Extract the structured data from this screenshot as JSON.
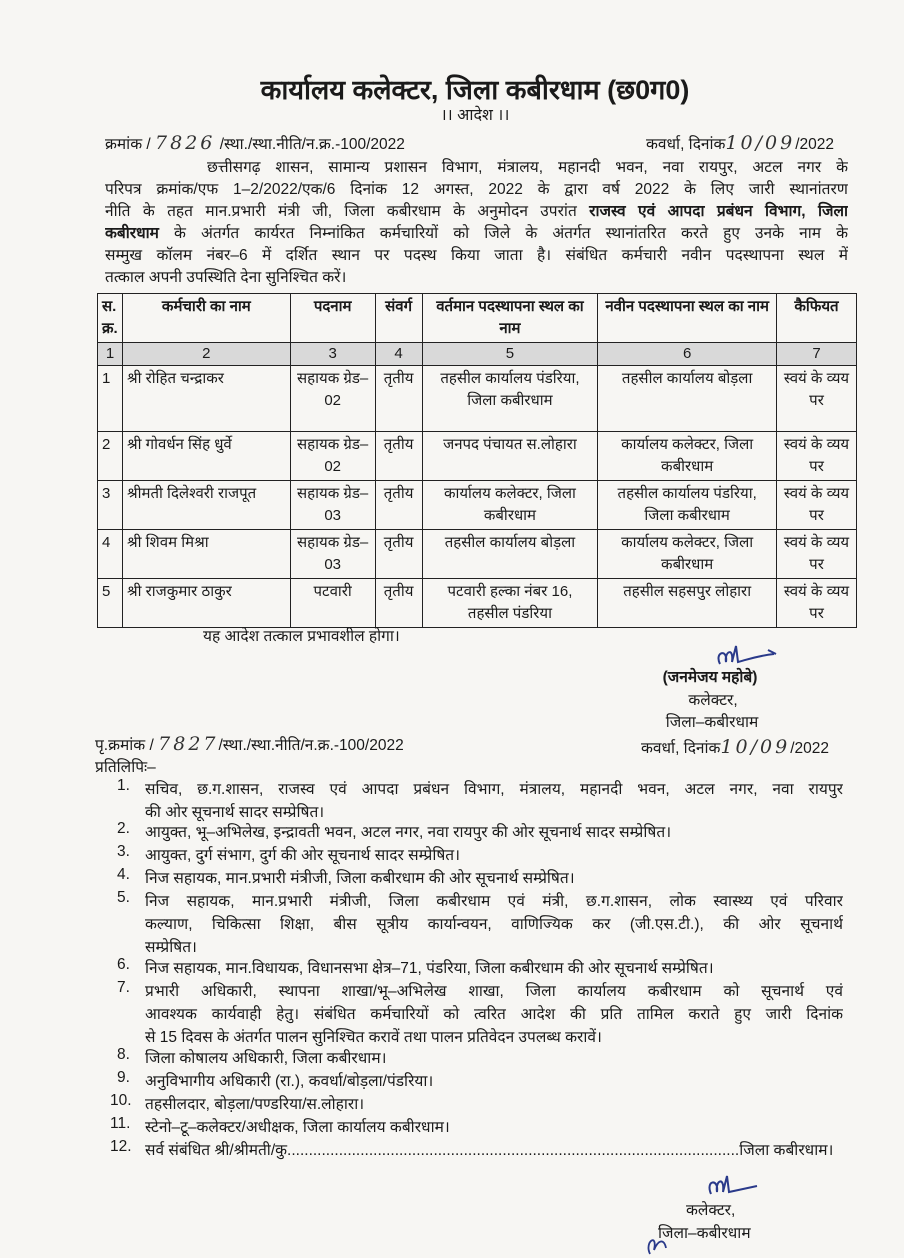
{
  "header": {
    "title": "कार्यालय कलेक्टर, जिला कबीरधाम (छ0ग0)",
    "order_label": "।। आदेश ।।"
  },
  "ref": {
    "prefix": "क्रमांक /",
    "handwritten_no": "7826",
    "suffix": "/स्था./स्था.नीति/न.क्र.-100/2022",
    "place_date_label": "कवर्धा, दिनांक",
    "handwritten_date": "10/09",
    "year": "/2022"
  },
  "intro_lines": [
    "छत्तीसगढ़ शासन, सामान्य प्रशासन विभाग, मंत्रालय, महानदी भवन, नवा रायपुर, अटल नगर के",
    "परिपत्र क्रमांक/एफ 1–2/2022/एक/6 दिनांक 12 अगस्त, 2022 के द्वारा वर्ष 2022 के लिए जारी स्थानांतरण",
    "नीति के तहत मान.प्रभारी मंत्री जी, जिला कबीरधाम के अनुमोदन उपरांत",
    "राजस्व एवं आपदा प्रबंधन विभाग, जिला",
    "कबीरधाम",
    "के अंतर्गत कार्यरत निम्नांकित कर्मचारियों को जिले के अंतर्गत स्थानांतरित करते हुए उनके नाम के",
    "सम्मुख कॉलम नंबर–6 में दर्शित स्थान पर पदस्थ किया जाता है। संबंधित कर्मचारी नवीन पदस्थापना स्थल में",
    "तत्काल अपनी उपस्थिति देना सुनिश्चित करें।"
  ],
  "table": {
    "headers": [
      "स. क्र.",
      "कर्मचारी का नाम",
      "पदनाम",
      "संवर्ग",
      "वर्तमान पदस्थापना स्थल का नाम",
      "नवीन पदस्थापना स्थल का नाम",
      "कैफियत"
    ],
    "column_numbers": [
      "1",
      "2",
      "3",
      "4",
      "5",
      "6",
      "7"
    ],
    "rows": [
      [
        "1",
        "श्री रोहित चन्द्राकर",
        "सहायक ग्रेड–02",
        "तृतीय",
        "तहसील कार्यालय पंडरिया, जिला कबीरधाम",
        "तहसील कार्यालय बोड़ला",
        "स्वयं के व्यय पर"
      ],
      [
        "2",
        "श्री गोवर्धन सिंह धुर्वे",
        "सहायक ग्रेड–02",
        "तृतीय",
        "जनपद पंचायत स.लोहारा",
        "कार्यालय कलेक्टर, जिला कबीरधाम",
        "स्वयं के व्यय पर"
      ],
      [
        "3",
        "श्रीमती दिलेश्वरी राजपूत",
        "सहायक ग्रेड–03",
        "तृतीय",
        "कार्यालय कलेक्टर, जिला कबीरधाम",
        "तहसील कार्यालय पंडरिया, जिला कबीरधाम",
        "स्वयं के व्यय पर"
      ],
      [
        "4",
        "श्री शिवम मिश्रा",
        "सहायक ग्रेड–03",
        "तृतीय",
        "तहसील कार्यालय बोड़ला",
        "कार्यालय कलेक्टर, जिला कबीरधाम",
        "स्वयं के व्यय पर"
      ],
      [
        "5",
        "श्री राजकुमार ठाकुर",
        "पटवारी",
        "तृतीय",
        "पटवारी हल्का नंबर 16, तहसील पंडरिया",
        "तहसील सहसपुर लोहारा",
        "स्वयं के व्यय पर"
      ]
    ]
  },
  "effective_note": "यह आदेश तत्काल प्रभावशील होगा।",
  "signatory": {
    "name": "(जनमेजय महोबे)",
    "designation": "कलेक्टर,",
    "district": "जिला–कबीरधाम"
  },
  "copy_ref": {
    "prefix": "पृ.क्रमांक /",
    "handwritten_no": "7827",
    "suffix": "/स्था./स्था.नीति/न.क्र.-100/2022",
    "place_date_label": "कवर्धा, दिनांक",
    "handwritten_date": "10/09",
    "year": "/2022",
    "copy_label": "प्रतिलिपिः–"
  },
  "copy_list": [
    {
      "n": "1.",
      "lines": [
        "सचिव, छ.ग.शासन, राजस्व एवं आपदा प्रबंधन विभाग, मंत्रालय, महानदी भवन, अटल नगर, नवा रायपुर",
        "की ओर सूचनार्थ सादर सम्प्रेषित।"
      ]
    },
    {
      "n": "2.",
      "lines": [
        "आयुक्त, भू–अभिलेख, इन्द्रावती भवन, अटल नगर, नवा रायपुर की ओर सूचनार्थ सादर सम्प्रेषित।"
      ]
    },
    {
      "n": "3.",
      "lines": [
        "आयुक्त, दुर्ग संभाग, दुर्ग की ओर सूचनार्थ सादर सम्प्रेषित।"
      ]
    },
    {
      "n": "4.",
      "lines": [
        "निज सहायक, मान.प्रभारी मंत्रीजी, जिला कबीरधाम की ओर सूचनार्थ सम्प्रेषित।"
      ]
    },
    {
      "n": "5.",
      "lines": [
        "निज सहायक, मान.प्रभारी मंत्रीजी, जिला कबीरधाम एवं मंत्री, छ.ग.शासन, लोक स्वास्थ्य एवं परिवार",
        "कल्याण, चिकित्सा शिक्षा, बीस सूत्रीय कार्यान्वयन, वाणिज्यिक कर (जी.एस.टी.), की ओर सूचनार्थ",
        "सम्प्रेषित।"
      ]
    },
    {
      "n": "6.",
      "lines": [
        "निज सहायक, मान.विधायक, विधानसभा क्षेत्र–71, पंडरिया, जिला कबीरधाम की ओर सूचनार्थ सम्प्रेषित।"
      ]
    },
    {
      "n": "7.",
      "lines": [
        "प्रभारी अधिकारी, स्थापना शाखा/भू–अभिलेख शाखा, जिला कार्यालय कबीरधाम को सूचनार्थ एवं",
        "आवश्यक कार्यवाही हेतु। संबंधित कर्मचारियों को त्वरित आदेश की प्रति तामिल कराते हुए जारी दिनांक",
        "से 15 दिवस के अंतर्गत पालन सुनिश्चित करावें तथा पालन प्रतिवेदन उपलब्ध करावें।"
      ]
    },
    {
      "n": "8.",
      "lines": [
        "जिला कोषालय अधिकारी, जिला कबीरधाम।"
      ]
    },
    {
      "n": "9.",
      "lines": [
        "अनुविभागीय अधिकारी (रा.), कवर्धा/बोड़ला/पंडरिया।"
      ]
    },
    {
      "n": "10.",
      "lines": [
        "तहसीलदार, बोड़ला/पण्डरिया/स.लोहारा।"
      ]
    },
    {
      "n": "11.",
      "lines": [
        "स्टेनो–टू–कलेक्टर/अधीक्षक, जिला कार्यालय कबीरधाम।"
      ]
    },
    {
      "n": "12.",
      "lines": [
        "सर्व संबंधित श्री/श्रीमती/कु.........................................................................................................जिला कबीरधाम।"
      ]
    }
  ],
  "footer_signatory": {
    "designation": "कलेक्टर,",
    "district": "जिला–कबीरधाम"
  }
}
